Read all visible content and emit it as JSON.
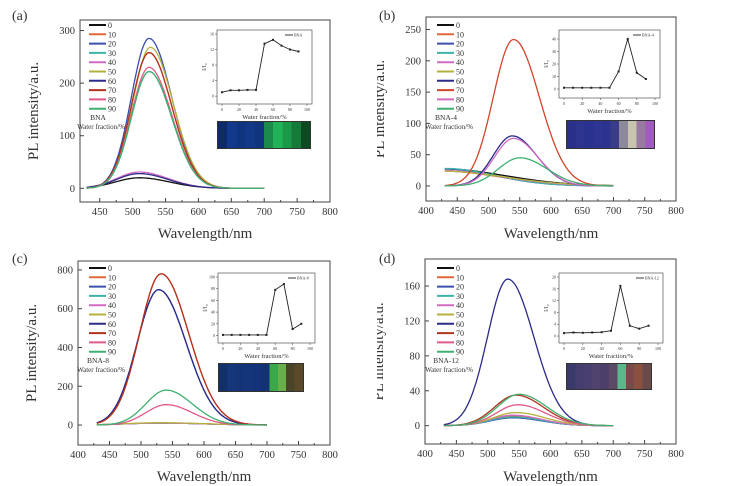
{
  "chart_data": [
    {
      "type": "line",
      "panel_label": "(a)",
      "sample": "BNA",
      "legend_title": "Water fraction/%",
      "xlabel": "Wavelength/nm",
      "ylabel": "PL intensity/a.u.",
      "xlim": [
        420,
        800
      ],
      "ylim": [
        -26,
        320
      ],
      "xticks": [
        450,
        500,
        550,
        600,
        650,
        700,
        750,
        800
      ],
      "yticks": [
        0,
        100,
        200,
        300
      ],
      "x_range_nm": [
        430,
        700
      ],
      "series": [
        {
          "name": "0",
          "color": "#111111",
          "peak_nm": 510,
          "peak": 20,
          "sigma": 40
        },
        {
          "name": "10",
          "color": "#e2683c",
          "peak_nm": 525,
          "peak": 258,
          "sigma": 30
        },
        {
          "name": "20",
          "color": "#3a4fae",
          "peak_nm": 525,
          "peak": 285,
          "sigma": 30
        },
        {
          "name": "30",
          "color": "#3cb3a6",
          "peak_nm": 525,
          "peak": 222,
          "sigma": 30
        },
        {
          "name": "40",
          "color": "#d06ac2",
          "peak_nm": 510,
          "peak": 31,
          "sigma": 38
        },
        {
          "name": "50",
          "color": "#b4b23e",
          "peak_nm": 527,
          "peak": 268,
          "sigma": 30
        },
        {
          "name": "60",
          "color": "#2b2c8a",
          "peak_nm": 510,
          "peak": 28,
          "sigma": 38
        },
        {
          "name": "70",
          "color": "#b2321f",
          "peak_nm": 525,
          "peak": 258,
          "sigma": 30
        },
        {
          "name": "80",
          "color": "#e05a86",
          "peak_nm": 525,
          "peak": 230,
          "sigma": 30
        },
        {
          "name": "90",
          "color": "#3fb070",
          "peak_nm": 525,
          "peak": 222,
          "sigma": 30
        }
      ],
      "inset": {
        "legend": "BNA",
        "xlabel": "Water fraction/%",
        "ylabel": "I/I₀",
        "xticks": [
          0,
          20,
          40,
          60,
          80,
          100
        ],
        "yticks": [
          0,
          4,
          8,
          12,
          16
        ],
        "ylim": [
          -1,
          16
        ],
        "x": [
          0,
          10,
          20,
          30,
          40,
          50,
          60,
          70,
          80,
          90
        ],
        "y": [
          1,
          1.5,
          1.5,
          1.6,
          1.6,
          13.5,
          14.5,
          13,
          12,
          11.5
        ],
        "photo_colors": [
          "#0e2a6a",
          "#133a8a",
          "#0f3580",
          "#123888",
          "#10357d",
          "#1b8a4a",
          "#22b258",
          "#1a9a48",
          "#157a3a",
          "#0d4a22"
        ]
      }
    },
    {
      "type": "line",
      "panel_label": "(b)",
      "sample": "BNA-4",
      "legend_title": "Water fraction/%",
      "xlabel": "Wavelength/nm",
      "ylabel": "PL intensity/a.u.",
      "xlim": [
        400,
        800
      ],
      "ylim": [
        -24,
        270
      ],
      "xticks": [
        400,
        450,
        500,
        550,
        600,
        650,
        700,
        750,
        800
      ],
      "yticks": [
        0,
        50,
        100,
        150,
        200,
        250
      ],
      "x_range_nm": [
        430,
        700
      ],
      "series": [
        {
          "name": "0",
          "color": "#111111",
          "peak_nm": 420,
          "peak": 28,
          "sigma": 90
        },
        {
          "name": "10",
          "color": "#e2683c",
          "peak_nm": 420,
          "peak": 24,
          "sigma": 85
        },
        {
          "name": "20",
          "color": "#3a4fae",
          "peak_nm": 430,
          "peak": 27,
          "sigma": 70
        },
        {
          "name": "30",
          "color": "#3cb3a6",
          "peak_nm": 430,
          "peak": 28,
          "sigma": 70
        },
        {
          "name": "40",
          "color": "#d06ac2",
          "peak_nm": 420,
          "peak": 25,
          "sigma": 85
        },
        {
          "name": "50",
          "color": "#b4b23e",
          "peak_nm": 420,
          "peak": 24,
          "sigma": 90
        },
        {
          "name": "60",
          "color": "#2b2c8a",
          "peak_nm": 538,
          "peak": 80,
          "sigma": 34
        },
        {
          "name": "70",
          "color": "#d0462a",
          "peak_nm": 540,
          "peak": 234,
          "sigma": 36
        },
        {
          "name": "80",
          "color": "#d06ac2",
          "peak_nm": 540,
          "peak": 76,
          "sigma": 34
        },
        {
          "name": "90",
          "color": "#3fb070",
          "peak_nm": 550,
          "peak": 45,
          "sigma": 38
        }
      ],
      "inset": {
        "legend": "BNA-4",
        "xlabel": "Water fraction/%",
        "ylabel": "I/I₀",
        "xticks": [
          0,
          20,
          40,
          60,
          80,
          100
        ],
        "yticks": [
          0,
          10,
          20,
          30,
          40
        ],
        "ylim": [
          -4,
          44
        ],
        "x": [
          0,
          10,
          20,
          30,
          40,
          50,
          60,
          70,
          80,
          90
        ],
        "y": [
          1,
          1,
          1,
          1,
          1,
          1,
          14,
          40,
          13,
          8
        ],
        "photo_colors": [
          "#2a2f8a",
          "#2c348e",
          "#2a3290",
          "#2d3492",
          "#2b338e",
          "#3a3c8a",
          "#8c8a9a",
          "#c8c4b0",
          "#9a7aa0",
          "#a05ac0"
        ]
      }
    },
    {
      "type": "line",
      "panel_label": "(c)",
      "sample": "BNA-8",
      "legend_title": "Water fraction/%",
      "xlabel": "Wavelength/nm",
      "ylabel": "PL intensity/a.u.",
      "xlim": [
        400,
        800
      ],
      "ylim": [
        -103,
        846
      ],
      "xticks": [
        400,
        450,
        500,
        550,
        600,
        650,
        700,
        750,
        800
      ],
      "yticks": [
        0,
        200,
        400,
        600,
        800
      ],
      "x_range_nm": [
        430,
        700
      ],
      "series": [
        {
          "name": "0",
          "color": "#111111",
          "peak_nm": 530,
          "peak": 10,
          "sigma": 60
        },
        {
          "name": "10",
          "color": "#e2683c",
          "peak_nm": 532,
          "peak": 780,
          "sigma": 38
        },
        {
          "name": "20",
          "color": "#3a4fae",
          "peak_nm": 528,
          "peak": 698,
          "sigma": 38
        },
        {
          "name": "30",
          "color": "#3cb3a6",
          "peak_nm": 530,
          "peak": 10,
          "sigma": 60
        },
        {
          "name": "40",
          "color": "#d06ac2",
          "peak_nm": 530,
          "peak": 10,
          "sigma": 60
        },
        {
          "name": "50",
          "color": "#b4b23e",
          "peak_nm": 530,
          "peak": 12,
          "sigma": 60
        },
        {
          "name": "60",
          "color": "#2b2c8a",
          "peak_nm": 528,
          "peak": 698,
          "sigma": 38
        },
        {
          "name": "70",
          "color": "#b2321f",
          "peak_nm": 532,
          "peak": 780,
          "sigma": 38
        },
        {
          "name": "80",
          "color": "#e05a86",
          "peak_nm": 540,
          "peak": 105,
          "sigma": 36
        },
        {
          "name": "90",
          "color": "#3fb070",
          "peak_nm": 540,
          "peak": 180,
          "sigma": 36
        }
      ],
      "inset": {
        "legend": "BNA-8",
        "xlabel": "Water fraction/%",
        "ylabel": "I/I₀",
        "xticks": [
          0,
          20,
          40,
          60,
          80,
          100
        ],
        "yticks": [
          0,
          20,
          40,
          60,
          80,
          100
        ],
        "ylim": [
          -6,
          100
        ],
        "x": [
          0,
          10,
          20,
          30,
          40,
          50,
          60,
          70,
          80,
          90
        ],
        "y": [
          1,
          1,
          1,
          1,
          1,
          1,
          78,
          88,
          11,
          20
        ],
        "photo_colors": [
          "#13306a",
          "#16367a",
          "#143478",
          "#15357a",
          "#13337a",
          "#133274",
          "#3aa84a",
          "#6ab04a",
          "#4a4428",
          "#5a4a2a"
        ]
      }
    },
    {
      "type": "line",
      "panel_label": "(d)",
      "sample": "BNA-12",
      "legend_title": "Water fraction/%",
      "xlabel": "Wavelength/nm",
      "ylabel": "PL intensity/a.u.",
      "xlim": [
        400,
        800
      ],
      "ylim": [
        -21,
        191
      ],
      "xticks": [
        400,
        450,
        500,
        550,
        600,
        650,
        700,
        750,
        800
      ],
      "yticks": [
        0,
        40,
        80,
        120,
        160
      ],
      "x_range_nm": [
        430,
        700
      ],
      "series": [
        {
          "name": "0",
          "color": "#111111",
          "peak_nm": 540,
          "peak": 10,
          "sigma": 40
        },
        {
          "name": "10",
          "color": "#e2683c",
          "peak_nm": 540,
          "peak": 11,
          "sigma": 40
        },
        {
          "name": "20",
          "color": "#3a4fae",
          "peak_nm": 540,
          "peak": 9,
          "sigma": 40
        },
        {
          "name": "30",
          "color": "#3cb3a6",
          "peak_nm": 540,
          "peak": 10,
          "sigma": 40
        },
        {
          "name": "40",
          "color": "#d06ac2",
          "peak_nm": 540,
          "peak": 12,
          "sigma": 40
        },
        {
          "name": "50",
          "color": "#b4b23e",
          "peak_nm": 545,
          "peak": 15,
          "sigma": 40
        },
        {
          "name": "60",
          "color": "#2b2c8a",
          "peak_nm": 532,
          "peak": 168,
          "sigma": 36
        },
        {
          "name": "70",
          "color": "#b2321f",
          "peak_nm": 545,
          "peak": 35,
          "sigma": 38
        },
        {
          "name": "80",
          "color": "#e05a86",
          "peak_nm": 548,
          "peak": 24,
          "sigma": 38
        },
        {
          "name": "90",
          "color": "#3fb070",
          "peak_nm": 550,
          "peak": 36,
          "sigma": 38
        }
      ],
      "inset": {
        "legend": "BNA-12",
        "xlabel": "Water fraction/%",
        "ylabel": "I/I₀",
        "xticks": [
          0,
          20,
          40,
          60,
          80,
          100
        ],
        "yticks": [
          0,
          4,
          8,
          12,
          16,
          20
        ],
        "ylim": [
          -1,
          20
        ],
        "x": [
          0,
          10,
          20,
          30,
          40,
          50,
          60,
          70,
          80,
          90
        ],
        "y": [
          1,
          1.2,
          1.1,
          1.2,
          1.3,
          1.8,
          17,
          3.5,
          2.5,
          3.5
        ],
        "photo_colors": [
          "#3a3a6a",
          "#463e6e",
          "#4a4070",
          "#50446e",
          "#4c406a",
          "#5a4a66",
          "#5ab88a",
          "#7a4a4a",
          "#8a5040",
          "#6a4a4a"
        ]
      }
    }
  ]
}
